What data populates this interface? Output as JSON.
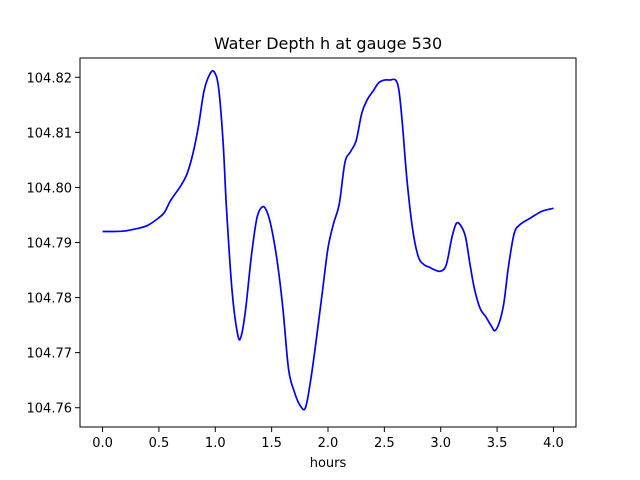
{
  "chart_data": {
    "type": "line",
    "title": "Water Depth h at gauge 530",
    "xlabel": "hours",
    "ylabel": "",
    "xlim": [
      -0.2,
      4.2
    ],
    "ylim": [
      104.7565,
      104.8235
    ],
    "xticks": [
      0.0,
      0.5,
      1.0,
      1.5,
      2.0,
      2.5,
      3.0,
      3.5,
      4.0
    ],
    "xtick_labels": [
      "0.0",
      "0.5",
      "1.0",
      "1.5",
      "2.0",
      "2.5",
      "3.0",
      "3.5",
      "4.0"
    ],
    "yticks": [
      104.76,
      104.77,
      104.78,
      104.79,
      104.8,
      104.81,
      104.82
    ],
    "ytick_labels": [
      "104.76",
      "104.77",
      "104.78",
      "104.79",
      "104.80",
      "104.81",
      "104.82"
    ],
    "grid": false,
    "series": [
      {
        "name": "",
        "color": "#0000ff",
        "x": [
          0.0,
          0.1,
          0.2,
          0.3,
          0.4,
          0.5,
          0.55,
          0.6,
          0.65,
          0.7,
          0.75,
          0.8,
          0.85,
          0.9,
          0.95,
          0.99,
          1.03,
          1.07,
          1.1,
          1.15,
          1.2,
          1.23,
          1.27,
          1.32,
          1.37,
          1.42,
          1.46,
          1.5,
          1.55,
          1.6,
          1.65,
          1.7,
          1.75,
          1.8,
          1.85,
          1.9,
          1.95,
          2.0,
          2.05,
          2.1,
          2.15,
          2.2,
          2.25,
          2.3,
          2.35,
          2.4,
          2.45,
          2.5,
          2.55,
          2.6,
          2.63,
          2.66,
          2.7,
          2.75,
          2.8,
          2.85,
          2.9,
          2.95,
          3.0,
          3.05,
          3.1,
          3.14,
          3.18,
          3.22,
          3.26,
          3.3,
          3.35,
          3.4,
          3.45,
          3.48,
          3.52,
          3.56,
          3.6,
          3.65,
          3.7,
          3.8,
          3.9,
          4.0
        ],
        "y": [
          104.792,
          104.792,
          104.7921,
          104.7925,
          104.7931,
          104.7945,
          104.7955,
          104.7975,
          104.799,
          104.8005,
          104.8025,
          104.806,
          104.811,
          104.8175,
          104.8205,
          104.821,
          104.818,
          104.808,
          104.796,
          104.781,
          104.7732,
          104.773,
          104.778,
          104.7875,
          104.7945,
          104.7965,
          104.7955,
          104.7925,
          104.7865,
          104.778,
          104.767,
          104.763,
          104.7605,
          104.76,
          104.7655,
          104.773,
          104.781,
          104.789,
          104.7935,
          104.797,
          104.8045,
          104.8065,
          104.8085,
          104.8135,
          104.816,
          104.8175,
          104.819,
          104.8195,
          104.8195,
          104.8195,
          104.8175,
          104.8115,
          104.8015,
          104.7925,
          104.7875,
          104.786,
          104.7855,
          104.785,
          104.7848,
          104.786,
          104.791,
          104.7935,
          104.793,
          104.791,
          104.786,
          104.7815,
          104.778,
          104.7765,
          104.7748,
          104.774,
          104.7755,
          104.779,
          104.7855,
          104.7915,
          104.7932,
          104.7945,
          104.7957,
          104.7962
        ]
      }
    ]
  }
}
